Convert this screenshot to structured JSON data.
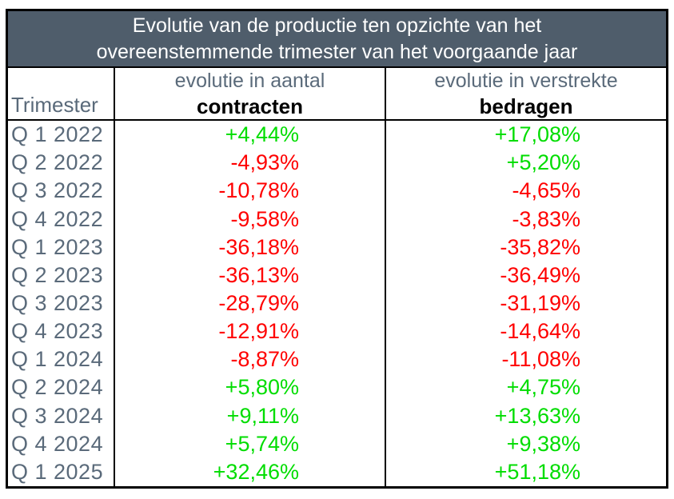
{
  "table": {
    "title_line1": "Evolutie van de productie ten opzichte van het",
    "title_line2": "overeenstemmende trimester van het voorgaande jaar",
    "columns": {
      "quarter": "Trimester",
      "contracts_line1": "evolutie in aantal",
      "contracts_line2": "contracten",
      "amounts_line1": "evolutie in verstrekte",
      "amounts_line2": "bedragen"
    },
    "rows": [
      {
        "quarter": "Q 1 2022",
        "contracts": {
          "value": "+4,44%",
          "trend": "up"
        },
        "amounts": {
          "value": "+17,08%",
          "trend": "up"
        }
      },
      {
        "quarter": "Q 2 2022",
        "contracts": {
          "value": "-4,93%",
          "trend": "down"
        },
        "amounts": {
          "value": "+5,20%",
          "trend": "up"
        }
      },
      {
        "quarter": "Q 3 2022",
        "contracts": {
          "value": "-10,78%",
          "trend": "down"
        },
        "amounts": {
          "value": "-4,65%",
          "trend": "down"
        }
      },
      {
        "quarter": "Q 4 2022",
        "contracts": {
          "value": "-9,58%",
          "trend": "down"
        },
        "amounts": {
          "value": "-3,83%",
          "trend": "down"
        }
      },
      {
        "quarter": "Q 1 2023",
        "contracts": {
          "value": "-36,18%",
          "trend": "down"
        },
        "amounts": {
          "value": "-35,82%",
          "trend": "down"
        }
      },
      {
        "quarter": "Q 2 2023",
        "contracts": {
          "value": "-36,13%",
          "trend": "down"
        },
        "amounts": {
          "value": "-36,49%",
          "trend": "down"
        }
      },
      {
        "quarter": "Q 3 2023",
        "contracts": {
          "value": "-28,79%",
          "trend": "down"
        },
        "amounts": {
          "value": "-31,19%",
          "trend": "down"
        }
      },
      {
        "quarter": "Q 4 2023",
        "contracts": {
          "value": "-12,91%",
          "trend": "down"
        },
        "amounts": {
          "value": "-14,64%",
          "trend": "down"
        }
      },
      {
        "quarter": "Q 1 2024",
        "contracts": {
          "value": "-8,87%",
          "trend": "down"
        },
        "amounts": {
          "value": "-11,08%",
          "trend": "down"
        }
      },
      {
        "quarter": "Q 2 2024",
        "contracts": {
          "value": "+5,80%",
          "trend": "up"
        },
        "amounts": {
          "value": "+4,75%",
          "trend": "up"
        }
      },
      {
        "quarter": "Q 3 2024",
        "contracts": {
          "value": "+9,11%",
          "trend": "up"
        },
        "amounts": {
          "value": "+13,63%",
          "trend": "up"
        }
      },
      {
        "quarter": "Q 4 2024",
        "contracts": {
          "value": "+5,74%",
          "trend": "up"
        },
        "amounts": {
          "value": "+9,38%",
          "trend": "up"
        }
      },
      {
        "quarter": "Q 1 2025",
        "contracts": {
          "value": "+32,46%",
          "trend": "up"
        },
        "amounts": {
          "value": "+51,18%",
          "trend": "up"
        }
      }
    ]
  },
  "colors": {
    "header_background": "#4f5d6b",
    "header_text": "#ffffff",
    "label_gray": "#5a6a7a",
    "positive_green": "#00dd00",
    "negative_red": "#ff0000",
    "border_black": "#000000"
  },
  "chart_data": {
    "type": "table",
    "title": "Evolutie van de productie ten opzichte van het overeenstemmende trimester van het voorgaande jaar",
    "categories": [
      "Q 1 2022",
      "Q 2 2022",
      "Q 3 2022",
      "Q 4 2022",
      "Q 1 2023",
      "Q 2 2023",
      "Q 3 2023",
      "Q 4 2023",
      "Q 1 2024",
      "Q 2 2024",
      "Q 3 2024",
      "Q 4 2024",
      "Q 1 2025"
    ],
    "series": [
      {
        "name": "evolutie in aantal contracten (%)",
        "values": [
          4.44,
          -4.93,
          -10.78,
          -9.58,
          -36.18,
          -36.13,
          -28.79,
          -12.91,
          -8.87,
          5.8,
          9.11,
          5.74,
          32.46
        ]
      },
      {
        "name": "evolutie in verstrekte bedragen (%)",
        "values": [
          17.08,
          5.2,
          -4.65,
          -3.83,
          -35.82,
          -36.49,
          -31.19,
          -14.64,
          -11.08,
          4.75,
          13.63,
          9.38,
          51.18
        ]
      }
    ],
    "value_format": "signed percent, comma decimal separator",
    "color_coding": "positive values green, negative values red"
  }
}
